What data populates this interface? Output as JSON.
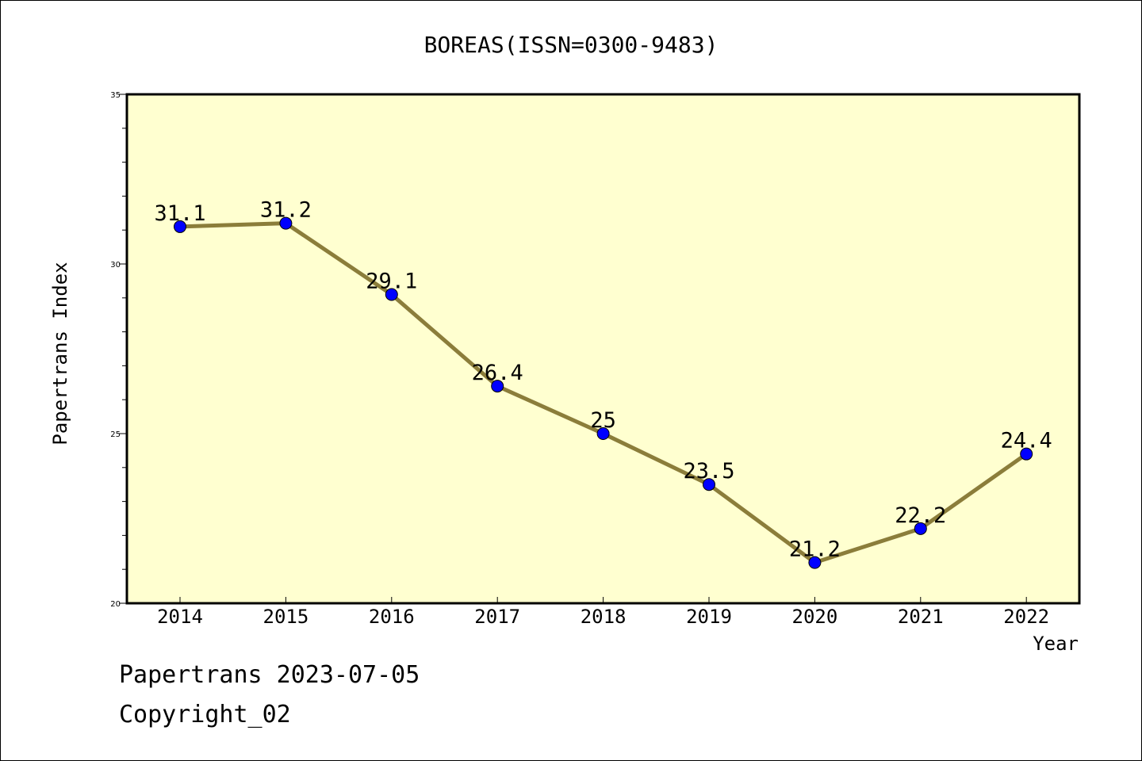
{
  "chart_data": {
    "type": "line",
    "title": "BOREAS(ISSN=0300-9483)",
    "xlabel": "Year",
    "ylabel": "Papertrans Index",
    "categories": [
      "2014",
      "2015",
      "2016",
      "2017",
      "2018",
      "2019",
      "2020",
      "2021",
      "2022"
    ],
    "series": [
      {
        "values": [
          31.1,
          31.2,
          29.1,
          26.4,
          25,
          23.5,
          21.2,
          22.2,
          24.4
        ],
        "labels": [
          "31.1",
          "31.2",
          "29.1",
          "26.4",
          "25",
          "23.5",
          "21.2",
          "22.2",
          "24.4"
        ]
      }
    ],
    "ylim": [
      20,
      35
    ],
    "yticks": [
      20,
      25,
      30,
      35
    ],
    "ytick_labels": [
      "20",
      "25",
      "30",
      "35"
    ],
    "grid": false,
    "colors": {
      "line": "#8b7d3a",
      "marker": "#0000ff",
      "plot_background": "#ffffd0"
    }
  },
  "footer": {
    "line1": "Papertrans 2023-07-05",
    "line2": "Copyright_02"
  }
}
